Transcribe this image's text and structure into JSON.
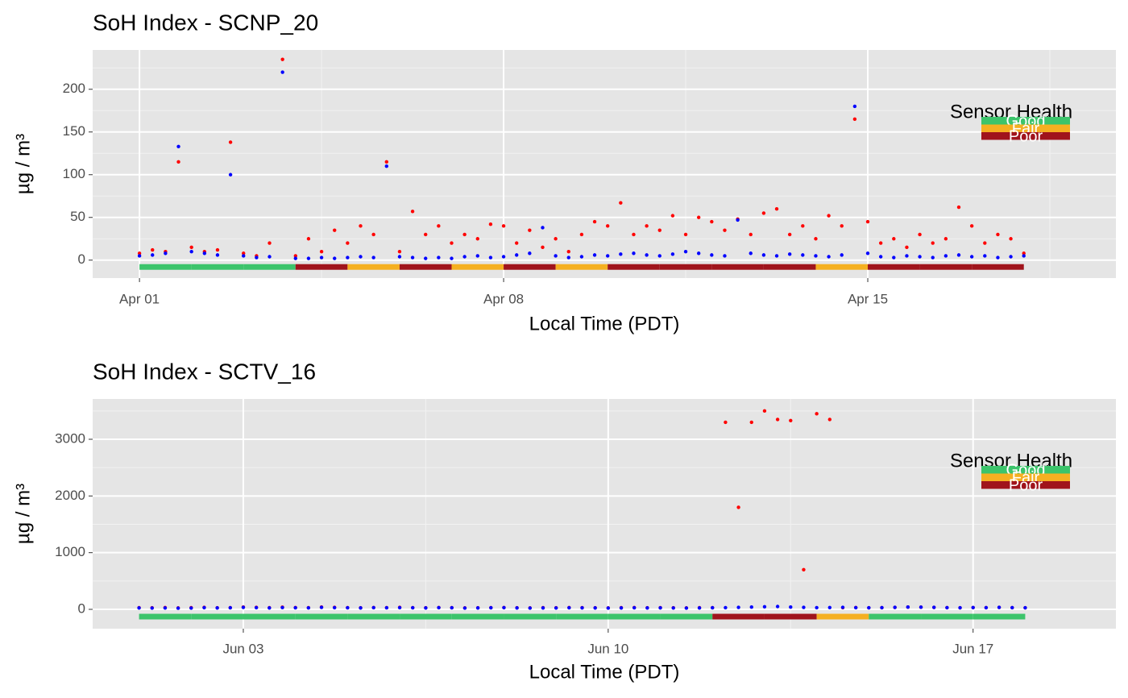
{
  "chart_data": [
    {
      "type": "scatter",
      "title": "SoH Index - SCNP_20",
      "x_label": "Local Time (PDT)",
      "y_label": "µg / m³",
      "x": [
        1,
        1.25,
        1.5,
        1.75,
        2,
        2.25,
        2.5,
        2.75,
        3,
        3.25,
        3.5,
        3.75,
        4,
        4.25,
        4.5,
        4.75,
        5,
        5.25,
        5.5,
        5.75,
        6,
        6.25,
        6.5,
        6.75,
        7,
        7.25,
        7.5,
        7.75,
        8,
        8.25,
        8.5,
        8.75,
        9,
        9.25,
        9.5,
        9.75,
        10,
        10.25,
        10.5,
        10.75,
        11,
        11.25,
        11.5,
        11.75,
        12,
        12.25,
        12.5,
        12.75,
        13,
        13.25,
        13.5,
        13.75,
        14,
        14.25,
        14.5,
        14.75,
        15,
        15.25,
        15.5,
        15.75,
        16,
        16.25,
        16.5,
        16.75,
        17,
        17.25,
        17.5,
        17.75,
        18
      ],
      "series": [
        {
          "color": "#ff0000",
          "values": [
            8,
            12,
            10,
            115,
            15,
            10,
            12,
            138,
            8,
            5,
            20,
            235,
            5,
            25,
            10,
            35,
            20,
            40,
            30,
            115,
            10,
            57,
            30,
            40,
            20,
            30,
            25,
            42,
            40,
            20,
            35,
            15,
            25,
            10,
            30,
            45,
            40,
            67,
            30,
            40,
            35,
            52,
            30,
            50,
            45,
            35,
            48,
            30,
            55,
            60,
            30,
            40,
            25,
            52,
            40,
            165,
            45,
            20,
            25,
            15,
            30,
            20,
            25,
            62,
            40,
            20,
            30,
            25,
            8
          ]
        },
        {
          "color": "#0000ff",
          "values": [
            5,
            6,
            8,
            133,
            10,
            8,
            6,
            100,
            5,
            3,
            4,
            220,
            2,
            2,
            3,
            2,
            3,
            4,
            3,
            110,
            4,
            3,
            2,
            3,
            2,
            4,
            5,
            3,
            4,
            6,
            8,
            38,
            5,
            3,
            4,
            6,
            5,
            7,
            8,
            6,
            5,
            7,
            10,
            8,
            6,
            5,
            47,
            8,
            6,
            5,
            7,
            6,
            5,
            4,
            6,
            180,
            8,
            4,
            3,
            5,
            4,
            3,
            5,
            6,
            4,
            5,
            3,
            4,
            5
          ]
        }
      ],
      "xlim": [
        0.1,
        19.77
      ],
      "xticks": [
        {
          "value": 1,
          "label": "Apr 01"
        },
        {
          "value": 8,
          "label": "Apr 08"
        },
        {
          "value": 15,
          "label": "Apr 15"
        }
      ],
      "ylim": [
        -21,
        246
      ],
      "yticks": [
        0,
        50,
        100,
        150,
        200
      ],
      "grid": true,
      "health": {
        "title": "Sensor Health",
        "level": -8,
        "levels": [
          {
            "name": "Good",
            "color": "#3cc46b"
          },
          {
            "name": "Fair",
            "color": "#f5b021"
          },
          {
            "name": "Poor",
            "color": "#a0141c"
          }
        ],
        "days": [
          1,
          2,
          3,
          4,
          5,
          6,
          7,
          8,
          9,
          10,
          11,
          12,
          13,
          14,
          15,
          16,
          17
        ],
        "status": [
          0,
          0,
          0,
          2,
          1,
          2,
          1,
          2,
          1,
          2,
          2,
          2,
          2,
          1,
          2,
          2,
          2
        ]
      }
    },
    {
      "type": "scatter",
      "title": "SoH Index - SCTV_16",
      "x_label": "Local Time (PDT)",
      "y_label": "µg / m³",
      "x": [
        1,
        1.25,
        1.5,
        1.75,
        2,
        2.25,
        2.5,
        2.75,
        3,
        3.25,
        3.5,
        3.75,
        4,
        4.25,
        4.5,
        4.75,
        5,
        5.25,
        5.5,
        5.75,
        6,
        6.25,
        6.5,
        6.75,
        7,
        7.25,
        7.5,
        7.75,
        8,
        8.25,
        8.5,
        8.75,
        9,
        9.25,
        9.5,
        9.75,
        10,
        10.25,
        10.5,
        10.75,
        11,
        11.25,
        11.5,
        11.75,
        12,
        12.25,
        12.5,
        12.75,
        13,
        13.25,
        13.5,
        13.75,
        14,
        14.25,
        14.5,
        14.75,
        15,
        15.25,
        15.5,
        15.75,
        16,
        16.25,
        16.5,
        16.75,
        17,
        17.25,
        17.5,
        17.75,
        18
      ],
      "series": [
        {
          "color": "#ff0000",
          "values": [
            30,
            28,
            32,
            25,
            30,
            35,
            28,
            30,
            40,
            35,
            30,
            38,
            32,
            30,
            40,
            35,
            30,
            28,
            32,
            30,
            35,
            30,
            28,
            32,
            30,
            25,
            28,
            30,
            32,
            28,
            25,
            30,
            28,
            32,
            30,
            28,
            25,
            30,
            32,
            28,
            30,
            28,
            25,
            30,
            30,
            3300,
            1800,
            3300,
            3500,
            3350,
            3330,
            700,
            3450,
            3350,
            30,
            32,
            28,
            30,
            35,
            40,
            38,
            35,
            30,
            28,
            32,
            30,
            35,
            30,
            28
          ]
        },
        {
          "color": "#0000ff",
          "values": [
            25,
            22,
            24,
            20,
            22,
            30,
            25,
            28,
            35,
            30,
            25,
            32,
            28,
            26,
            35,
            30,
            28,
            25,
            30,
            28,
            30,
            28,
            25,
            30,
            28,
            22,
            25,
            28,
            30,
            25,
            22,
            25,
            24,
            28,
            26,
            25,
            22,
            25,
            28,
            25,
            26,
            24,
            22,
            25,
            28,
            30,
            35,
            40,
            45,
            50,
            40,
            35,
            30,
            32,
            35,
            30,
            28,
            30,
            35,
            40,
            38,
            35,
            30,
            28,
            32,
            30,
            35,
            30,
            28
          ]
        }
      ],
      "xlim": [
        0.11,
        19.74
      ],
      "xticks": [
        {
          "value": 3,
          "label": "Jun 03"
        },
        {
          "value": 10,
          "label": "Jun 10"
        },
        {
          "value": 17,
          "label": "Jun 17"
        }
      ],
      "ylim": [
        -341,
        3711
      ],
      "yticks": [
        0,
        1000,
        2000,
        3000
      ],
      "grid": true,
      "health": {
        "title": "Sensor Health",
        "level": -128,
        "levels": [
          {
            "name": "Good",
            "color": "#3cc46b"
          },
          {
            "name": "Fair",
            "color": "#f5b021"
          },
          {
            "name": "Poor",
            "color": "#a0141c"
          }
        ],
        "days": [
          1,
          2,
          3,
          4,
          5,
          6,
          7,
          8,
          9,
          10,
          11,
          12,
          13,
          14,
          15,
          16,
          17
        ],
        "status": [
          0,
          0,
          0,
          0,
          0,
          0,
          0,
          0,
          0,
          0,
          0,
          2,
          2,
          1,
          0,
          0,
          0
        ]
      }
    }
  ]
}
